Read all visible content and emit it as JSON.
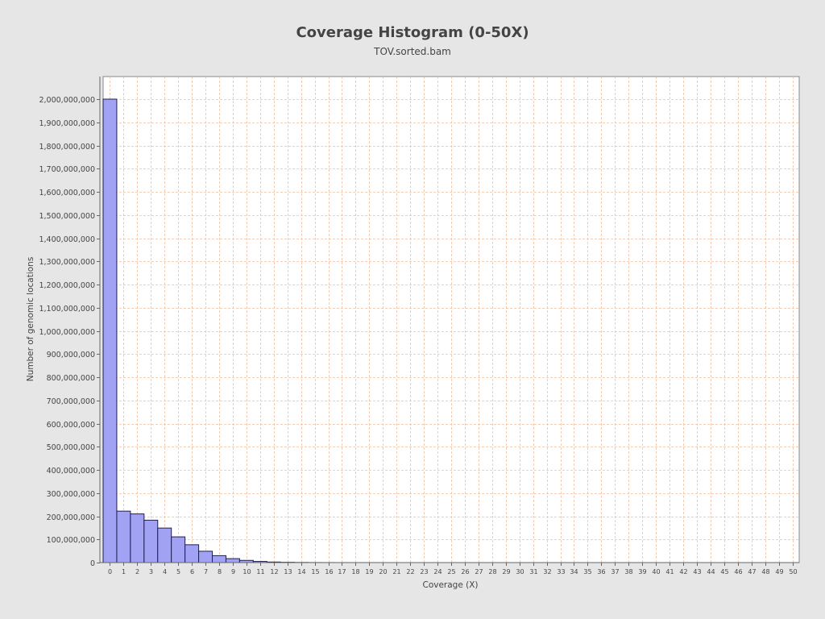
{
  "chart_data": {
    "type": "bar",
    "title": "Coverage Histogram (0-50X)",
    "subtitle": "TOV.sorted.bam",
    "xlabel": "Coverage (X)",
    "ylabel": "Number of genomic locations",
    "ylim": [
      0,
      2000000000
    ],
    "yticks": [
      0,
      100000000,
      200000000,
      300000000,
      400000000,
      500000000,
      600000000,
      700000000,
      800000000,
      900000000,
      1000000000,
      1100000000,
      1200000000,
      1300000000,
      1400000000,
      1500000000,
      1600000000,
      1700000000,
      1800000000,
      1900000000,
      2000000000
    ],
    "categories": [
      "0",
      "1",
      "2",
      "3",
      "4",
      "5",
      "6",
      "7",
      "8",
      "9",
      "10",
      "11",
      "12",
      "13",
      "14",
      "15",
      "16",
      "17",
      "18",
      "19",
      "20",
      "21",
      "22",
      "23",
      "24",
      "25",
      "26",
      "27",
      "28",
      "29",
      "30",
      "31",
      "32",
      "33",
      "34",
      "35",
      "36",
      "37",
      "38",
      "39",
      "40",
      "41",
      "42",
      "43",
      "44",
      "45",
      "46",
      "47",
      "48",
      "49",
      "50"
    ],
    "values": [
      2000000000,
      222000000,
      210000000,
      183000000,
      149000000,
      111000000,
      77000000,
      49000000,
      30000000,
      17000000,
      9500000,
      5000000,
      2500000,
      1300000,
      650000,
      330000,
      170000,
      90000,
      50000,
      25000,
      15000,
      8000,
      5000,
      3000,
      2000,
      1000,
      800,
      600,
      400,
      300,
      200,
      150,
      100,
      80,
      60,
      50,
      40,
      30,
      20,
      15,
      10,
      8,
      6,
      5,
      4,
      3,
      2,
      2,
      1,
      1,
      1
    ],
    "grid": true,
    "colors": {
      "background": "#e6e6e6",
      "plot_background": "#ffffff",
      "bar_fill": "#a2a2f5",
      "bar_stroke": "#202050",
      "gridline": "#f0c0a0"
    }
  }
}
